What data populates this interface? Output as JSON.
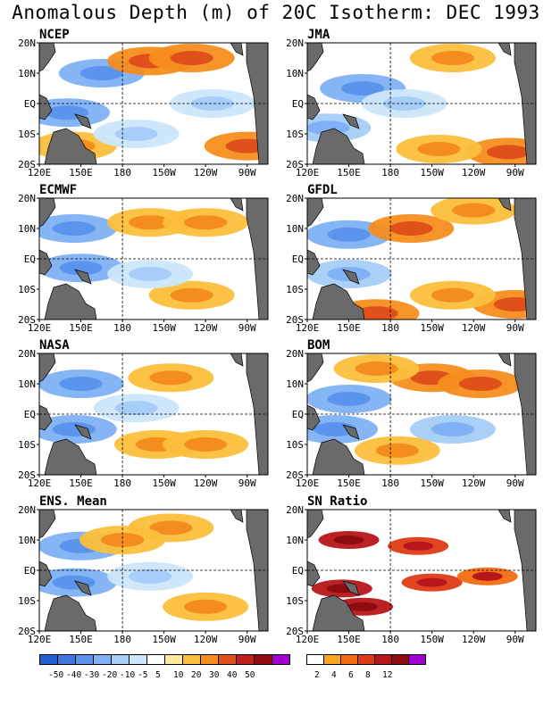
{
  "title": "Anomalous Depth (m) of 20C Isotherm: DEC 1993",
  "chart_data": [
    {
      "type": "heatmap",
      "title": "NCEP",
      "xlabel": "",
      "ylabel": "",
      "x_ticks": [
        "120E",
        "150E",
        "180",
        "150W",
        "120W",
        "90W"
      ],
      "y_ticks": [
        "20N",
        "10N",
        "EQ",
        "10S",
        "20S"
      ],
      "features": [
        {
          "lon": 165,
          "lat": 10,
          "value": -25
        },
        {
          "lon": 140,
          "lat": -3,
          "value": -30
        },
        {
          "lon": 200,
          "lat": 14,
          "value": 20
        },
        {
          "lon": 230,
          "lat": 15,
          "value": 20
        },
        {
          "lon": 145,
          "lat": -14,
          "value": 15
        },
        {
          "lon": 270,
          "lat": -14,
          "value": 25
        },
        {
          "lon": 190,
          "lat": -10,
          "value": -10
        },
        {
          "lon": 245,
          "lat": 0,
          "value": -10
        }
      ]
    },
    {
      "type": "heatmap",
      "title": "JMA",
      "xlabel": "",
      "ylabel": "",
      "x_ticks": [
        "120E",
        "150E",
        "180",
        "150W",
        "120W",
        "90W"
      ],
      "y_ticks": [
        "20N",
        "10N",
        "EQ",
        "10S",
        "20S"
      ],
      "features": [
        {
          "lon": 160,
          "lat": 5,
          "value": -25
        },
        {
          "lon": 135,
          "lat": -8,
          "value": -20
        },
        {
          "lon": 225,
          "lat": 15,
          "value": 15
        },
        {
          "lon": 265,
          "lat": -16,
          "value": 20
        },
        {
          "lon": 215,
          "lat": -15,
          "value": 10
        },
        {
          "lon": 190,
          "lat": 0,
          "value": -10
        }
      ]
    },
    {
      "type": "heatmap",
      "title": "ECMWF",
      "xlabel": "",
      "ylabel": "",
      "x_ticks": [
        "120E",
        "150E",
        "180",
        "150W",
        "120W",
        "90W"
      ],
      "y_ticks": [
        "20N",
        "10N",
        "EQ",
        "10S",
        "20S"
      ],
      "features": [
        {
          "lon": 145,
          "lat": 10,
          "value": -30
        },
        {
          "lon": 150,
          "lat": -3,
          "value": -25
        },
        {
          "lon": 200,
          "lat": 12,
          "value": 10
        },
        {
          "lon": 240,
          "lat": 12,
          "value": 10
        },
        {
          "lon": 230,
          "lat": -12,
          "value": 15
        },
        {
          "lon": 200,
          "lat": -5,
          "value": -10
        }
      ]
    },
    {
      "type": "heatmap",
      "title": "GFDL",
      "xlabel": "",
      "ylabel": "",
      "x_ticks": [
        "120E",
        "150E",
        "180",
        "150W",
        "120W",
        "90W"
      ],
      "y_ticks": [
        "20N",
        "10N",
        "EQ",
        "10S",
        "20S"
      ],
      "features": [
        {
          "lon": 150,
          "lat": 8,
          "value": -25
        },
        {
          "lon": 150,
          "lat": -5,
          "value": -20
        },
        {
          "lon": 195,
          "lat": 10,
          "value": 20
        },
        {
          "lon": 240,
          "lat": 16,
          "value": 15
        },
        {
          "lon": 270,
          "lat": -15,
          "value": 20
        },
        {
          "lon": 225,
          "lat": -12,
          "value": 15
        },
        {
          "lon": 170,
          "lat": -18,
          "value": 20
        }
      ]
    },
    {
      "type": "heatmap",
      "title": "NASA",
      "xlabel": "",
      "ylabel": "",
      "x_ticks": [
        "120E",
        "150E",
        "180",
        "150W",
        "120W",
        "90W"
      ],
      "y_ticks": [
        "20N",
        "10N",
        "EQ",
        "10S",
        "20S"
      ],
      "features": [
        {
          "lon": 150,
          "lat": 10,
          "value": -25
        },
        {
          "lon": 145,
          "lat": -5,
          "value": -30
        },
        {
          "lon": 215,
          "lat": 12,
          "value": 15
        },
        {
          "lon": 205,
          "lat": -10,
          "value": 10
        },
        {
          "lon": 240,
          "lat": -10,
          "value": 15
        },
        {
          "lon": 190,
          "lat": 2,
          "value": -10
        }
      ]
    },
    {
      "type": "heatmap",
      "title": "BOM",
      "xlabel": "",
      "ylabel": "",
      "x_ticks": [
        "120E",
        "150E",
        "180",
        "150W",
        "120W",
        "90W"
      ],
      "y_ticks": [
        "20N",
        "10N",
        "EQ",
        "10S",
        "20S"
      ],
      "features": [
        {
          "lon": 150,
          "lat": 5,
          "value": -30
        },
        {
          "lon": 140,
          "lat": -5,
          "value": -25
        },
        {
          "lon": 210,
          "lat": 12,
          "value": 20
        },
        {
          "lon": 245,
          "lat": 10,
          "value": 25
        },
        {
          "lon": 170,
          "lat": 15,
          "value": 10
        },
        {
          "lon": 225,
          "lat": -5,
          "value": -15
        },
        {
          "lon": 185,
          "lat": -12,
          "value": 10
        }
      ]
    },
    {
      "type": "heatmap",
      "title": "ENS. Mean",
      "xlabel": "",
      "ylabel": "",
      "x_ticks": [
        "120E",
        "150E",
        "180",
        "150W",
        "120W",
        "90W"
      ],
      "y_ticks": [
        "20N",
        "10N",
        "EQ",
        "10S",
        "20S"
      ],
      "features": [
        {
          "lon": 150,
          "lat": 8,
          "value": -25
        },
        {
          "lon": 145,
          "lat": -4,
          "value": -25
        },
        {
          "lon": 215,
          "lat": 14,
          "value": 15
        },
        {
          "lon": 180,
          "lat": 10,
          "value": 10
        },
        {
          "lon": 240,
          "lat": -12,
          "value": 10
        },
        {
          "lon": 200,
          "lat": -2,
          "value": -10
        }
      ]
    },
    {
      "type": "heatmap",
      "title": "SN Ratio",
      "xlabel": "",
      "ylabel": "",
      "x_ticks": [
        "120E",
        "150E",
        "180",
        "150W",
        "120W",
        "90W"
      ],
      "y_ticks": [
        "20N",
        "10N",
        "EQ",
        "10S",
        "20S"
      ],
      "features": [
        {
          "lon": 150,
          "lat": 10,
          "value": 8
        },
        {
          "lon": 145,
          "lat": -6,
          "value": 10
        },
        {
          "lon": 200,
          "lat": 8,
          "value": 6
        },
        {
          "lon": 210,
          "lat": -4,
          "value": 6
        },
        {
          "lon": 160,
          "lat": -12,
          "value": 8
        },
        {
          "lon": 250,
          "lat": -2,
          "value": 4
        }
      ]
    }
  ],
  "legend_anomaly": {
    "labels": [
      "-50",
      "-40",
      "-30",
      "-20",
      "-10",
      "-5",
      "5",
      "10",
      "20",
      "30",
      "40",
      "50"
    ],
    "colors": [
      "#1f5fd0",
      "#3c78e0",
      "#5a94ec",
      "#7fb1f4",
      "#a6cef8",
      "#cce6fb",
      "#ffffff",
      "#fde9a0",
      "#fbbf3c",
      "#f58d1e",
      "#e0501a",
      "#c0201a",
      "#900a10",
      "#a100d0"
    ]
  },
  "legend_sn": {
    "labels": [
      "2",
      "4",
      "6",
      "8",
      "12"
    ],
    "colors": [
      "#ffffff",
      "#f8a71c",
      "#f36c13",
      "#de3a15",
      "#b7161a",
      "#8e0c10",
      "#a100d0"
    ]
  }
}
